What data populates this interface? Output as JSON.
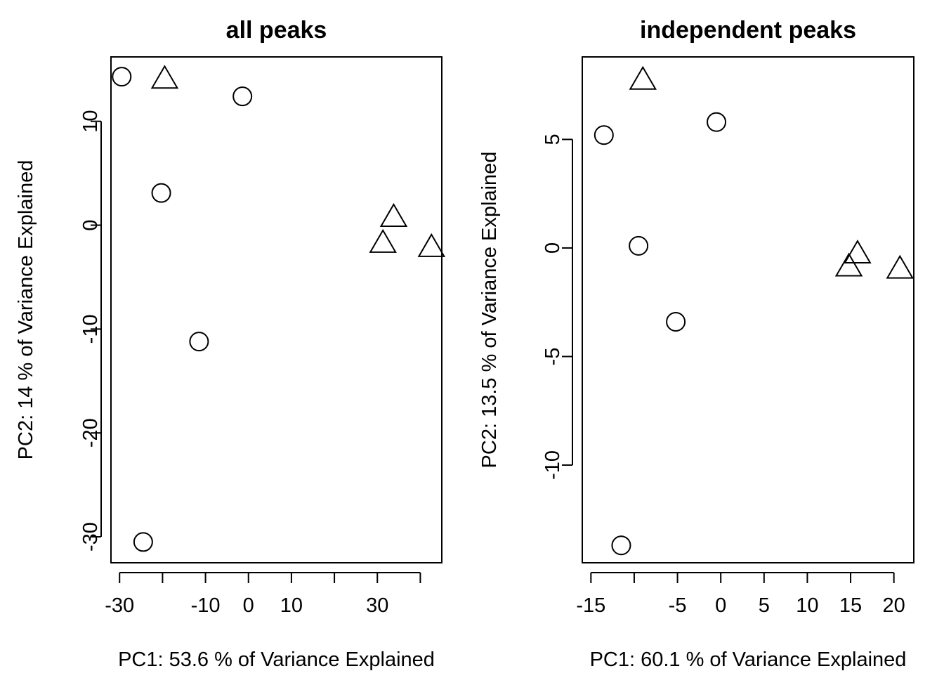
{
  "chart_data": [
    {
      "type": "scatter",
      "title": "all peaks",
      "xlabel": "PC1: 53.6 % of Variance Explained",
      "ylabel": "PC2: 14 % of Variance Explained",
      "xlim": [
        -32,
        45
      ],
      "ylim": [
        -32.5,
        16.2
      ],
      "x_ticks": [
        -30,
        -20,
        -10,
        0,
        10,
        20,
        30,
        40
      ],
      "x_tick_labels": [
        "-30",
        "",
        "-10",
        "0",
        "10",
        "",
        "30",
        ""
      ],
      "y_ticks": [
        -30,
        -20,
        -10,
        0,
        10
      ],
      "y_tick_labels": [
        "-30",
        "-20",
        "-10",
        "0",
        "10"
      ],
      "grid": false,
      "series": [
        {
          "marker": "circle",
          "points": [
            {
              "x": -29.5,
              "y": 14.3
            },
            {
              "x": -20.3,
              "y": 3.1
            },
            {
              "x": -1.4,
              "y": 12.4
            },
            {
              "x": -11.5,
              "y": -11.2
            },
            {
              "x": -24.5,
              "y": -30.5
            }
          ]
        },
        {
          "marker": "triangle",
          "points": [
            {
              "x": -19.5,
              "y": 14.0
            },
            {
              "x": 33.8,
              "y": 0.7
            },
            {
              "x": 31.3,
              "y": -1.8
            },
            {
              "x": 42.6,
              "y": -2.2
            }
          ]
        }
      ]
    },
    {
      "type": "scatter",
      "title": "independent peaks",
      "xlabel": "PC1: 60.1 % of Variance Explained",
      "ylabel": "PC2: 13.5 % of Variance Explained",
      "xlim": [
        -16,
        22.3
      ],
      "ylim": [
        -14.5,
        8.8
      ],
      "x_ticks": [
        -15,
        -10,
        -5,
        0,
        5,
        10,
        15,
        20
      ],
      "x_tick_labels": [
        "-15",
        "",
        "-5",
        "0",
        "5",
        "10",
        "15",
        "20"
      ],
      "y_ticks": [
        -10,
        -5,
        0,
        5
      ],
      "y_tick_labels": [
        "-10",
        "-5",
        "0",
        "5"
      ],
      "grid": false,
      "series": [
        {
          "marker": "circle",
          "points": [
            {
              "x": -13.5,
              "y": 5.2
            },
            {
              "x": -0.5,
              "y": 5.8
            },
            {
              "x": -9.5,
              "y": 0.1
            },
            {
              "x": -5.2,
              "y": -3.4
            },
            {
              "x": -11.5,
              "y": -13.7
            }
          ]
        },
        {
          "marker": "triangle",
          "points": [
            {
              "x": -9.0,
              "y": 7.7
            },
            {
              "x": 15.8,
              "y": -0.3
            },
            {
              "x": 14.8,
              "y": -0.9
            },
            {
              "x": 20.7,
              "y": -1.0
            }
          ]
        }
      ]
    }
  ]
}
